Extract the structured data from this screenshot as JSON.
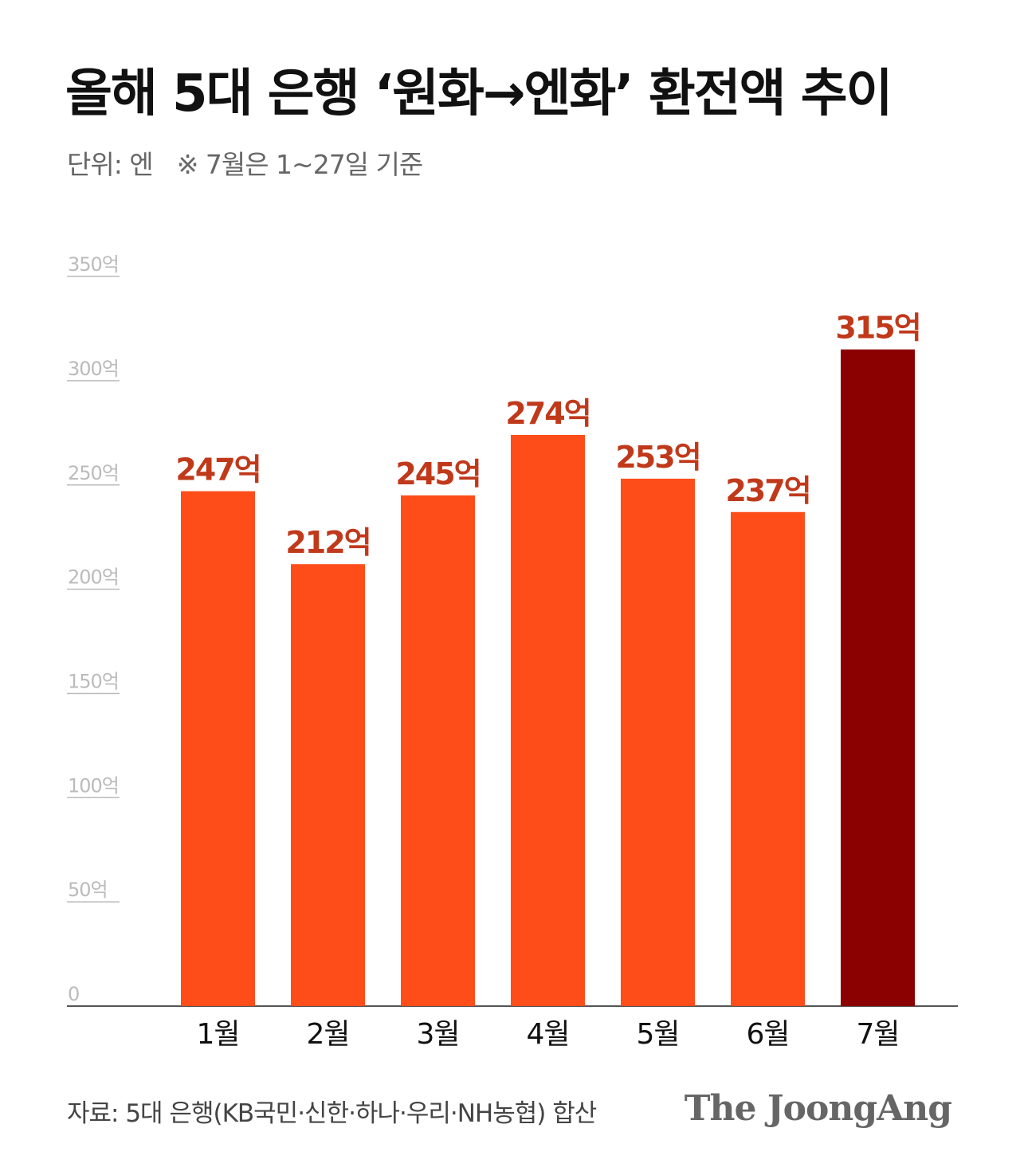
{
  "title": "올해 5대 은행 ‘원화→엔화’ 환전액 추이",
  "unit_label": "단위: 엔",
  "note": "※ 7월은 1~27일 기준",
  "source": "자료: 5대 은행(KB국민·신한·하나·우리·NH농협) 합산",
  "brand": "The JoongAng",
  "colors": {
    "bar": "#FF4D1A",
    "highlight_bar": "#8B0000",
    "value_label": "#C0391A",
    "axis_tick": "#BBBBBB",
    "baseline": "#555555"
  },
  "chart_data": {
    "type": "bar",
    "categories": [
      "1월",
      "2월",
      "3월",
      "4월",
      "5월",
      "6월",
      "7월"
    ],
    "values": [
      247,
      212,
      245,
      274,
      253,
      237,
      315
    ],
    "value_labels": [
      "247억",
      "212억",
      "245억",
      "274억",
      "253억",
      "237억",
      "315억"
    ],
    "highlight_index": 6,
    "ylim": [
      0,
      350
    ],
    "yticks": [
      0,
      50,
      100,
      150,
      200,
      250,
      300,
      350
    ],
    "ytick_labels": [
      "0",
      "50억",
      "100억",
      "150억",
      "200억",
      "250억",
      "300억",
      "350억"
    ],
    "grid": false
  }
}
